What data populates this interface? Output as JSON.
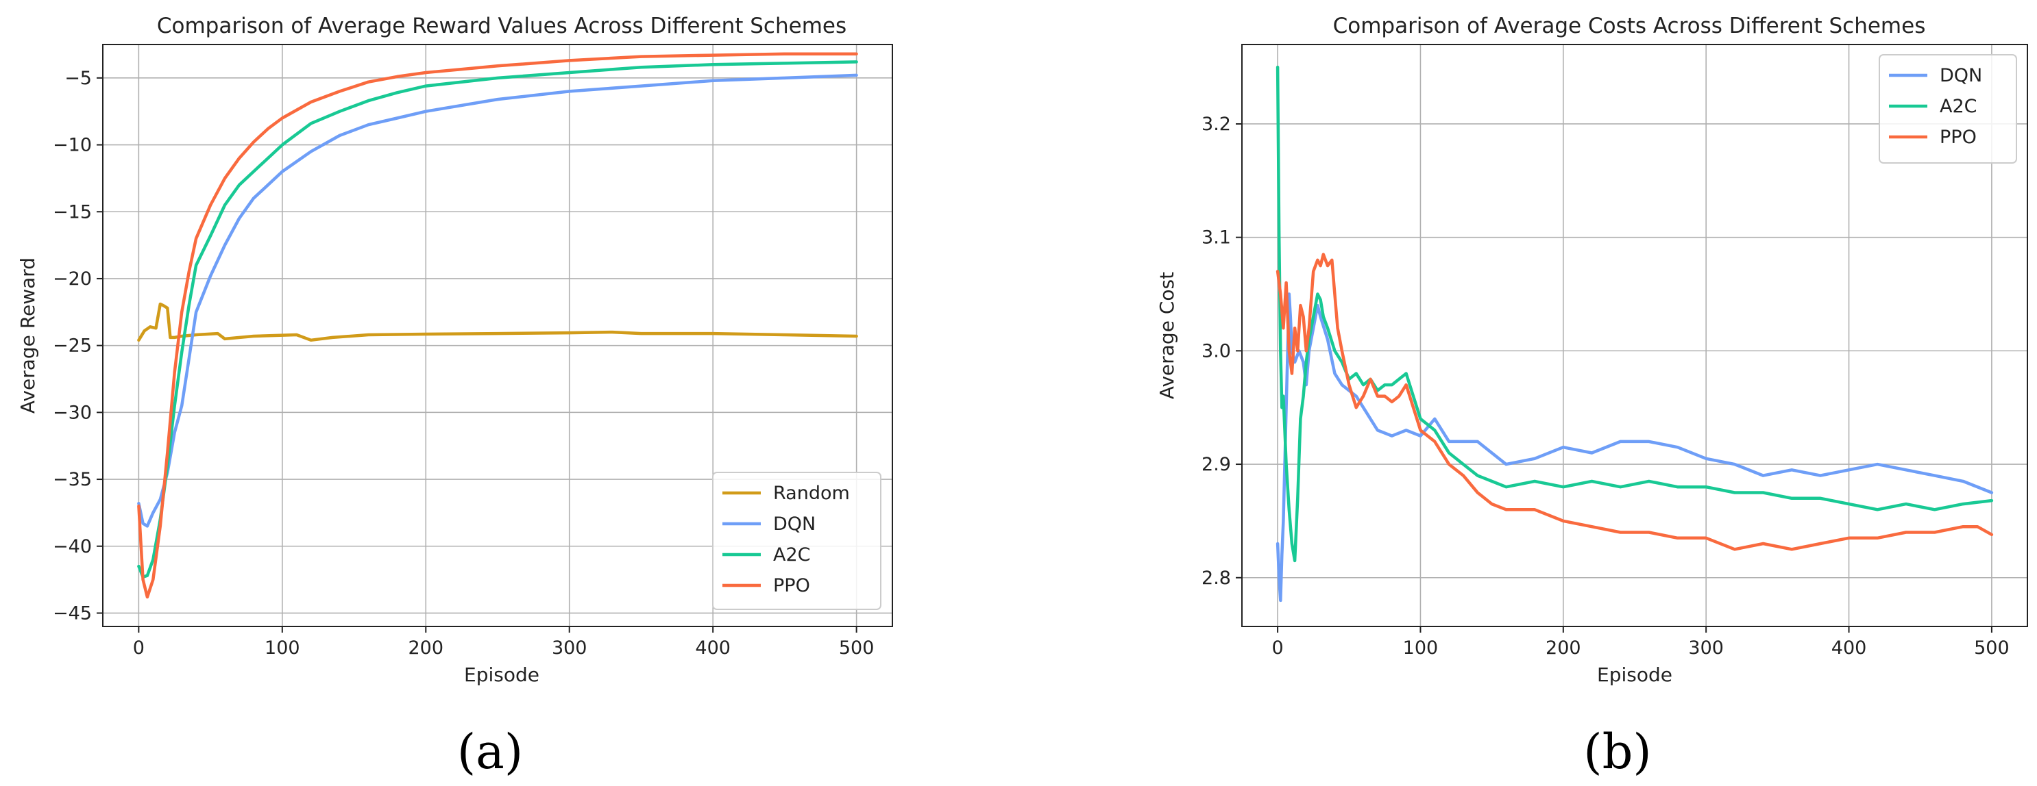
{
  "chart_data": [
    {
      "type": "line",
      "title": "Comparison of Average Reward Values Across Different Schemes",
      "xlabel": "Episode",
      "ylabel": "Average Reward",
      "xlim": [
        -25,
        525
      ],
      "ylim": [
        -46,
        -2.5
      ],
      "xticks": [
        0,
        100,
        200,
        300,
        400,
        500
      ],
      "yticks": [
        -45,
        -40,
        -35,
        -30,
        -25,
        -20,
        -15,
        -10,
        -5
      ],
      "grid": true,
      "legend_position": "lower-right",
      "panel_label": "(a)",
      "series": [
        {
          "name": "Random",
          "color": "#d19b19",
          "x": [
            0,
            4,
            8,
            12,
            15,
            17,
            20,
            22,
            25,
            30,
            40,
            55,
            60,
            80,
            110,
            120,
            135,
            160,
            200,
            250,
            300,
            330,
            350,
            400,
            450,
            500
          ],
          "y": [
            -24.6,
            -23.9,
            -23.6,
            -23.7,
            -21.9,
            -22.0,
            -22.2,
            -24.4,
            -24.4,
            -24.3,
            -24.2,
            -24.1,
            -24.5,
            -24.3,
            -24.2,
            -24.6,
            -24.4,
            -24.2,
            -24.15,
            -24.1,
            -24.05,
            -24.0,
            -24.1,
            -24.1,
            -24.2,
            -24.3
          ]
        },
        {
          "name": "DQN",
          "color": "#6e9ef7",
          "x": [
            0,
            3,
            6,
            10,
            15,
            20,
            25,
            30,
            35,
            40,
            50,
            60,
            70,
            80,
            90,
            100,
            120,
            140,
            160,
            180,
            200,
            250,
            300,
            350,
            400,
            450,
            500
          ],
          "y": [
            -36.8,
            -38.3,
            -38.5,
            -37.5,
            -36.5,
            -34.5,
            -31.5,
            -29.5,
            -26.0,
            -22.5,
            -19.8,
            -17.5,
            -15.5,
            -14.0,
            -13.0,
            -12.0,
            -10.5,
            -9.3,
            -8.5,
            -8.0,
            -7.5,
            -6.6,
            -6.0,
            -5.6,
            -5.2,
            -5.0,
            -4.8
          ]
        },
        {
          "name": "A2C",
          "color": "#18c994",
          "x": [
            0,
            3,
            6,
            10,
            15,
            20,
            25,
            30,
            35,
            40,
            50,
            60,
            70,
            80,
            90,
            100,
            120,
            140,
            160,
            180,
            200,
            250,
            300,
            350,
            400,
            450,
            500
          ],
          "y": [
            -41.5,
            -42.3,
            -42.2,
            -41.0,
            -38.0,
            -34.0,
            -29.5,
            -25.5,
            -22.0,
            -19.0,
            -16.8,
            -14.5,
            -13.0,
            -12.0,
            -11.0,
            -10.0,
            -8.4,
            -7.5,
            -6.7,
            -6.1,
            -5.6,
            -5.0,
            -4.6,
            -4.2,
            -4.0,
            -3.9,
            -3.8
          ]
        },
        {
          "name": "PPO",
          "color": "#f96a3e",
          "x": [
            0,
            3,
            6,
            10,
            15,
            20,
            25,
            30,
            35,
            40,
            50,
            60,
            70,
            80,
            90,
            100,
            120,
            140,
            160,
            180,
            200,
            250,
            300,
            350,
            400,
            450,
            500
          ],
          "y": [
            -37.0,
            -42.5,
            -43.8,
            -42.5,
            -38.5,
            -33.0,
            -27.0,
            -22.5,
            -19.5,
            -17.0,
            -14.5,
            -12.5,
            -11.0,
            -9.8,
            -8.8,
            -8.0,
            -6.8,
            -6.0,
            -5.3,
            -4.9,
            -4.6,
            -4.1,
            -3.7,
            -3.4,
            -3.3,
            -3.2,
            -3.2
          ]
        }
      ]
    },
    {
      "type": "line",
      "title": "Comparison of Average Costs Across Different Schemes",
      "xlabel": "Episode",
      "ylabel": "Average Cost",
      "xlim": [
        -25,
        525
      ],
      "ylim": [
        2.757,
        3.27
      ],
      "xticks": [
        0,
        100,
        200,
        300,
        400,
        500
      ],
      "yticks": [
        2.8,
        2.9,
        3.0,
        3.1,
        3.2
      ],
      "ytick_labels": [
        "2.8",
        "2.9",
        "3.0",
        "3.1",
        "3.2"
      ],
      "grid": true,
      "legend_position": "top-right",
      "panel_label": "(b)",
      "series": [
        {
          "name": "DQN",
          "color": "#6e9ef7",
          "x": [
            0,
            1,
            2,
            3,
            4,
            5,
            6,
            7,
            8,
            9,
            10,
            12,
            15,
            18,
            20,
            22,
            25,
            28,
            30,
            35,
            40,
            45,
            50,
            55,
            60,
            70,
            80,
            90,
            100,
            110,
            120,
            140,
            160,
            180,
            200,
            220,
            240,
            260,
            280,
            300,
            320,
            340,
            360,
            380,
            400,
            420,
            440,
            460,
            480,
            500
          ],
          "y": [
            2.83,
            2.8,
            2.78,
            2.82,
            2.85,
            2.9,
            2.95,
            3.0,
            3.05,
            3.03,
            3.0,
            2.99,
            3.0,
            2.99,
            2.97,
            3.0,
            3.02,
            3.04,
            3.03,
            3.01,
            2.98,
            2.97,
            2.965,
            2.96,
            2.95,
            2.93,
            2.925,
            2.93,
            2.925,
            2.94,
            2.92,
            2.92,
            2.9,
            2.905,
            2.915,
            2.91,
            2.92,
            2.92,
            2.915,
            2.905,
            2.9,
            2.89,
            2.895,
            2.89,
            2.895,
            2.9,
            2.895,
            2.89,
            2.885,
            2.875
          ]
        },
        {
          "name": "A2C",
          "color": "#18c994",
          "x": [
            0,
            1,
            2,
            3,
            4,
            5,
            6,
            8,
            10,
            12,
            14,
            16,
            18,
            20,
            22,
            25,
            28,
            30,
            32,
            35,
            40,
            45,
            50,
            55,
            60,
            65,
            70,
            75,
            80,
            85,
            90,
            100,
            110,
            120,
            130,
            140,
            150,
            160,
            180,
            200,
            220,
            240,
            260,
            280,
            300,
            320,
            340,
            360,
            380,
            400,
            420,
            440,
            460,
            480,
            500
          ],
          "y": [
            3.25,
            3.1,
            3.0,
            2.95,
            2.96,
            2.93,
            2.9,
            2.86,
            2.83,
            2.815,
            2.87,
            2.94,
            2.96,
            2.99,
            3.01,
            3.03,
            3.05,
            3.045,
            3.03,
            3.02,
            3.0,
            2.99,
            2.975,
            2.98,
            2.97,
            2.975,
            2.965,
            2.97,
            2.97,
            2.975,
            2.98,
            2.94,
            2.93,
            2.91,
            2.9,
            2.89,
            2.885,
            2.88,
            2.885,
            2.88,
            2.885,
            2.88,
            2.885,
            2.88,
            2.88,
            2.875,
            2.875,
            2.87,
            2.87,
            2.865,
            2.86,
            2.865,
            2.86,
            2.865,
            2.868
          ]
        },
        {
          "name": "PPO",
          "color": "#f96a3e",
          "x": [
            0,
            2,
            4,
            6,
            8,
            10,
            12,
            14,
            16,
            18,
            20,
            22,
            25,
            28,
            30,
            32,
            35,
            38,
            40,
            42,
            45,
            50,
            55,
            60,
            65,
            70,
            75,
            80,
            85,
            90,
            100,
            110,
            120,
            130,
            140,
            150,
            160,
            180,
            200,
            220,
            240,
            260,
            280,
            300,
            320,
            340,
            360,
            380,
            400,
            420,
            440,
            460,
            480,
            490,
            500
          ],
          "y": [
            3.07,
            3.05,
            3.02,
            3.06,
            3.0,
            2.98,
            3.02,
            3.0,
            3.04,
            3.03,
            3.0,
            3.02,
            3.07,
            3.08,
            3.075,
            3.085,
            3.075,
            3.08,
            3.05,
            3.02,
            3.0,
            2.97,
            2.95,
            2.96,
            2.975,
            2.96,
            2.96,
            2.955,
            2.96,
            2.97,
            2.93,
            2.92,
            2.9,
            2.89,
            2.875,
            2.865,
            2.86,
            2.86,
            2.85,
            2.845,
            2.84,
            2.84,
            2.835,
            2.835,
            2.825,
            2.83,
            2.825,
            2.83,
            2.835,
            2.835,
            2.84,
            2.84,
            2.845,
            2.845,
            2.838
          ]
        }
      ]
    }
  ]
}
